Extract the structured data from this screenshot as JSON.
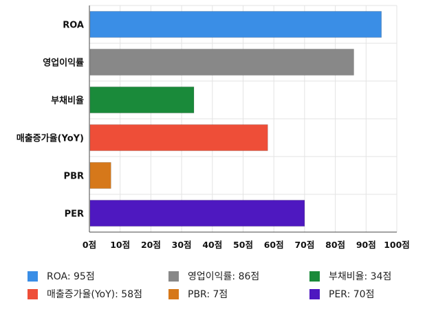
{
  "chart_data": {
    "type": "bar",
    "orientation": "horizontal",
    "categories": [
      "ROA",
      "영업이익률",
      "부채비율",
      "매출증가율(YoY)",
      "PBR",
      "PER"
    ],
    "values": [
      95,
      86,
      34,
      58,
      7,
      70
    ],
    "colors": [
      "#3a8ee6",
      "#888888",
      "#1a8a3a",
      "#ee4e38",
      "#d6781a",
      "#4e18c0"
    ],
    "xlim": [
      0,
      100
    ],
    "xticks": [
      0,
      10,
      20,
      30,
      40,
      50,
      60,
      70,
      80,
      90,
      100
    ],
    "tick_suffix": "점",
    "grid": true,
    "legend_position": "bottom",
    "legend": [
      {
        "label": "ROA: 95점",
        "color": "#3a8ee6"
      },
      {
        "label": "영업이익률: 86점",
        "color": "#888888"
      },
      {
        "label": "부채비율: 34점",
        "color": "#1a8a3a"
      },
      {
        "label": "매출증가율(YoY): 58점",
        "color": "#ee4e38"
      },
      {
        "label": "PBR: 7점",
        "color": "#d6781a"
      },
      {
        "label": "PER: 70점",
        "color": "#4e18c0"
      }
    ]
  }
}
